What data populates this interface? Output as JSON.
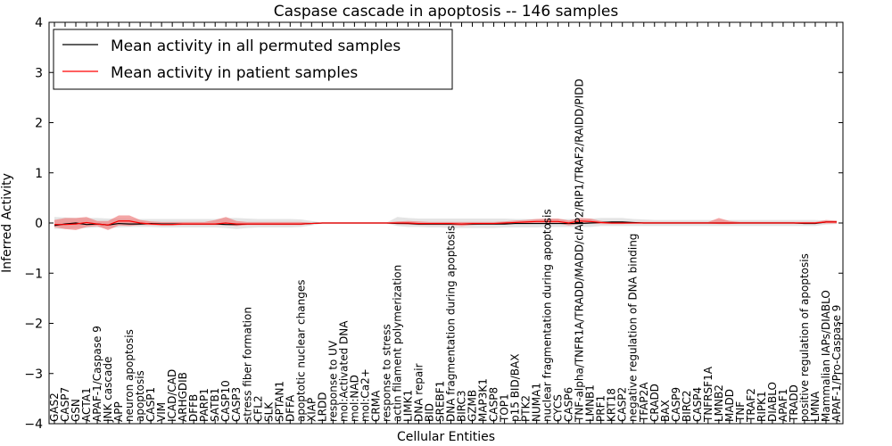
{
  "chart_data": {
    "type": "line",
    "title": "Caspase cascade in apoptosis -- 146 samples",
    "xlabel": "Cellular Entities",
    "ylabel": "Inferred Activity",
    "ylim": [
      -4,
      4
    ],
    "yticks": [
      -4,
      -3,
      -2,
      -1,
      0,
      1,
      2,
      3,
      4
    ],
    "grid": false,
    "legend": {
      "position": "top-left",
      "entries": [
        {
          "label": "Mean activity in all permuted samples",
          "color": "#000000"
        },
        {
          "label": "Mean activity in patient samples",
          "color": "#ff0000"
        }
      ]
    },
    "categories": [
      "GAS2",
      "CASP7",
      "GSN",
      "ACTA1",
      "APAF-1/Caspase 9",
      "JNK cascade",
      "APP",
      "neuron apoptosis",
      "apoptosis",
      "CASP1",
      "VIM",
      "ICAD/CAD",
      "ARHGDIB",
      "DFFB",
      "PARP1",
      "SATB1",
      "CASP10",
      "CASP3",
      "stress fiber formation",
      "CFL2",
      "SLK",
      "SPTAN1",
      "DFFA",
      "apoptotic nuclear changes",
      "XIAP",
      "LRDD",
      "response to UV",
      "mol:Activated DNA",
      "mol:NAD",
      "mol:Ca2+",
      "CRMA",
      "response to stress",
      "actin filament polymerization",
      "LIMK1",
      "DNA repair",
      "BID",
      "SREBF1",
      "DNA fragmentation during apoptosis",
      "BIRC3",
      "GZMB",
      "MAP3K1",
      "CASP8",
      "TOP1",
      "p15 BID/BAX",
      "PTK2",
      "NUMA1",
      "nuclear fragmentation during apoptosis",
      "CYCS",
      "CASP6",
      "TNF-alpha/TNFR1A/TRADD/MADD/cIAP2/RIP1/TRAF2/RAIDD/PIDD",
      "LMNB1",
      "PRF1",
      "KRT18",
      "CASP2",
      "negative regulation of DNA binding",
      "TFAP2A",
      "CRADD",
      "BAX",
      "CASP9",
      "BIRC2",
      "CASP4",
      "TNFRSF1A",
      "LMNB2",
      "MADD",
      "TNF",
      "TRAF2",
      "RIPK1",
      "DIABLO",
      "APAF1",
      "TRADD",
      "positive regulation of apoptosis",
      "LMNA",
      "Mammalian IAPs/DIABLO",
      "APAF-1/Pro-Caspase 9"
    ],
    "series": [
      {
        "name": "Mean activity in all permuted samples",
        "color": "#000000",
        "band_color": "#dddddd",
        "values": [
          -0.05,
          -0.02,
          0.0,
          -0.03,
          -0.02,
          -0.04,
          -0.01,
          -0.02,
          -0.02,
          -0.01,
          -0.02,
          -0.02,
          -0.02,
          -0.02,
          -0.02,
          -0.02,
          -0.03,
          -0.03,
          -0.02,
          -0.02,
          -0.02,
          -0.02,
          -0.02,
          -0.02,
          -0.01,
          0.0,
          0.0,
          0.0,
          0.0,
          0.0,
          0.0,
          0.0,
          -0.01,
          -0.01,
          -0.02,
          -0.02,
          -0.02,
          -0.02,
          -0.02,
          -0.02,
          -0.02,
          -0.02,
          -0.02,
          -0.01,
          -0.01,
          -0.01,
          -0.01,
          -0.01,
          -0.01,
          -0.01,
          0.0,
          0.01,
          0.02,
          0.02,
          0.01,
          0.0,
          0.0,
          0.0,
          0.0,
          0.0,
          0.0,
          0.0,
          0.0,
          0.0,
          0.0,
          0.0,
          0.0,
          0.0,
          0.0,
          0.0,
          -0.01,
          -0.01,
          0.02,
          0.02
        ],
        "lower": [
          -0.12,
          -0.12,
          -0.1,
          -0.1,
          -0.09,
          -0.1,
          -0.09,
          -0.08,
          -0.08,
          -0.08,
          -0.09,
          -0.09,
          -0.09,
          -0.09,
          -0.09,
          -0.09,
          -0.1,
          -0.12,
          -0.1,
          -0.09,
          -0.09,
          -0.09,
          -0.09,
          -0.08,
          -0.05,
          -0.01,
          -0.01,
          -0.01,
          -0.01,
          -0.01,
          -0.01,
          -0.01,
          -0.06,
          -0.08,
          -0.08,
          -0.09,
          -0.09,
          -0.1,
          -0.1,
          -0.1,
          -0.1,
          -0.1,
          -0.09,
          -0.09,
          -0.09,
          -0.09,
          -0.08,
          -0.08,
          -0.08,
          -0.08,
          -0.08,
          -0.06,
          -0.06,
          -0.06,
          -0.06,
          -0.06,
          -0.06,
          -0.06,
          -0.06,
          -0.06,
          -0.06,
          -0.06,
          -0.06,
          -0.06,
          -0.06,
          -0.06,
          -0.06,
          -0.06,
          -0.06,
          -0.06,
          -0.06,
          -0.06,
          -0.03,
          -0.02
        ],
        "upper": [
          0.12,
          0.11,
          0.1,
          0.1,
          0.1,
          0.09,
          0.09,
          0.08,
          0.08,
          0.08,
          0.08,
          0.08,
          0.08,
          0.08,
          0.08,
          0.08,
          0.1,
          0.1,
          0.09,
          0.08,
          0.08,
          0.08,
          0.08,
          0.07,
          0.04,
          0.01,
          0.01,
          0.01,
          0.01,
          0.01,
          0.01,
          0.01,
          0.12,
          0.1,
          0.09,
          0.09,
          0.09,
          0.09,
          0.09,
          0.09,
          0.09,
          0.09,
          0.09,
          0.08,
          0.08,
          0.08,
          0.08,
          0.08,
          0.08,
          0.08,
          0.09,
          0.1,
          0.1,
          0.1,
          0.08,
          0.07,
          0.06,
          0.06,
          0.06,
          0.06,
          0.06,
          0.06,
          0.06,
          0.06,
          0.06,
          0.06,
          0.06,
          0.06,
          0.06,
          0.06,
          0.06,
          0.06,
          0.05,
          0.03
        ]
      },
      {
        "name": "Mean activity in patient samples",
        "color": "#ff0000",
        "band_color": "#f08080",
        "values": [
          -0.03,
          -0.03,
          -0.02,
          0.01,
          -0.02,
          -0.04,
          0.04,
          0.04,
          0.0,
          -0.02,
          -0.03,
          -0.03,
          -0.02,
          -0.02,
          -0.02,
          -0.02,
          0.0,
          -0.02,
          -0.02,
          -0.02,
          -0.02,
          -0.02,
          -0.02,
          -0.02,
          -0.01,
          0.0,
          0.0,
          0.0,
          0.0,
          0.0,
          0.0,
          0.0,
          0.0,
          0.0,
          -0.01,
          -0.01,
          -0.01,
          -0.01,
          -0.02,
          -0.01,
          -0.01,
          -0.01,
          0.0,
          0.01,
          0.02,
          0.03,
          0.03,
          0.03,
          0.0,
          0.04,
          0.03,
          0.01,
          0.0,
          0.0,
          0.0,
          0.0,
          0.0,
          0.0,
          0.0,
          0.0,
          0.0,
          0.0,
          0.0,
          0.0,
          0.0,
          0.0,
          0.0,
          0.0,
          0.0,
          0.0,
          0.0,
          0.0,
          0.02,
          0.02
        ],
        "lower": [
          -0.08,
          -0.12,
          -0.14,
          -0.08,
          -0.06,
          -0.14,
          -0.05,
          -0.06,
          -0.04,
          -0.04,
          -0.05,
          -0.05,
          -0.04,
          -0.04,
          -0.04,
          -0.04,
          -0.04,
          -0.06,
          -0.04,
          -0.04,
          -0.04,
          -0.04,
          -0.04,
          -0.04,
          -0.02,
          -0.01,
          -0.01,
          -0.01,
          -0.01,
          -0.01,
          -0.01,
          -0.01,
          -0.02,
          -0.03,
          -0.04,
          -0.04,
          -0.04,
          -0.04,
          -0.06,
          -0.04,
          -0.03,
          -0.03,
          -0.02,
          -0.01,
          -0.01,
          -0.01,
          -0.02,
          -0.01,
          -0.05,
          -0.02,
          -0.01,
          -0.02,
          -0.02,
          -0.02,
          -0.01,
          -0.01,
          -0.01,
          -0.01,
          -0.01,
          -0.01,
          -0.01,
          -0.01,
          -0.02,
          -0.02,
          -0.01,
          -0.01,
          -0.01,
          -0.01,
          -0.01,
          -0.01,
          -0.01,
          -0.01,
          -0.01,
          -0.01
        ],
        "upper": [
          0.06,
          0.1,
          0.1,
          0.12,
          0.04,
          0.04,
          0.15,
          0.15,
          0.06,
          0.03,
          0.02,
          0.02,
          0.02,
          0.02,
          0.02,
          0.06,
          0.12,
          0.04,
          0.02,
          0.02,
          0.02,
          0.02,
          0.02,
          0.02,
          0.01,
          0.01,
          0.01,
          0.01,
          0.01,
          0.01,
          0.01,
          0.01,
          0.03,
          0.04,
          0.03,
          0.02,
          0.02,
          0.02,
          0.02,
          0.02,
          0.02,
          0.02,
          0.03,
          0.05,
          0.06,
          0.08,
          0.09,
          0.09,
          0.05,
          0.1,
          0.09,
          0.04,
          0.02,
          0.02,
          0.02,
          0.02,
          0.02,
          0.02,
          0.02,
          0.02,
          0.02,
          0.02,
          0.1,
          0.04,
          0.02,
          0.02,
          0.02,
          0.02,
          0.02,
          0.02,
          0.02,
          0.02,
          0.06,
          0.05
        ]
      }
    ]
  }
}
